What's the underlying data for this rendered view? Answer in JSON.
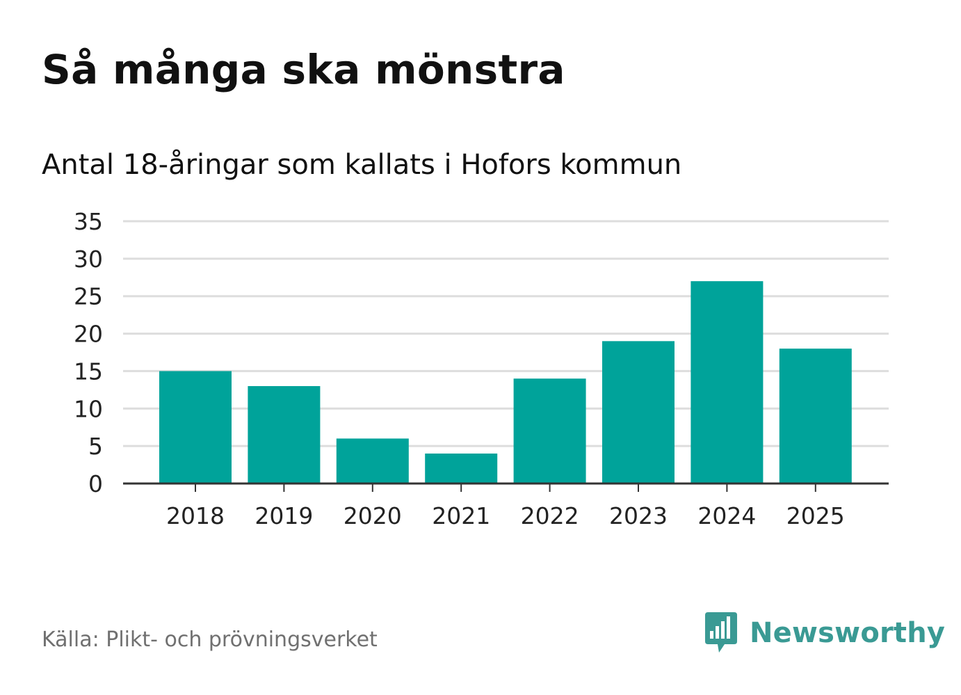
{
  "header": {
    "title": "Så många ska mönstra",
    "subtitle": "Antal 18-åringar som kallats i Hofors kommun"
  },
  "footer": {
    "source": "Källa: Plikt- och prövningsverket",
    "brand": "Newsworthy"
  },
  "colors": {
    "bar": "#00a39a",
    "grid": "#dddddd",
    "axis": "#333333",
    "brand": "#3a9a94"
  },
  "chart_data": {
    "type": "bar",
    "title": "Så många ska mönstra",
    "subtitle": "Antal 18-åringar som kallats i Hofors kommun",
    "xlabel": "",
    "ylabel": "",
    "categories": [
      "2018",
      "2019",
      "2020",
      "2021",
      "2022",
      "2023",
      "2024",
      "2025"
    ],
    "values": [
      15,
      13,
      6,
      4,
      14,
      19,
      27,
      18
    ],
    "ylim": [
      0,
      35
    ],
    "yticks": [
      0,
      5,
      10,
      15,
      20,
      25,
      30,
      35
    ],
    "grid": true,
    "legend": "none"
  }
}
